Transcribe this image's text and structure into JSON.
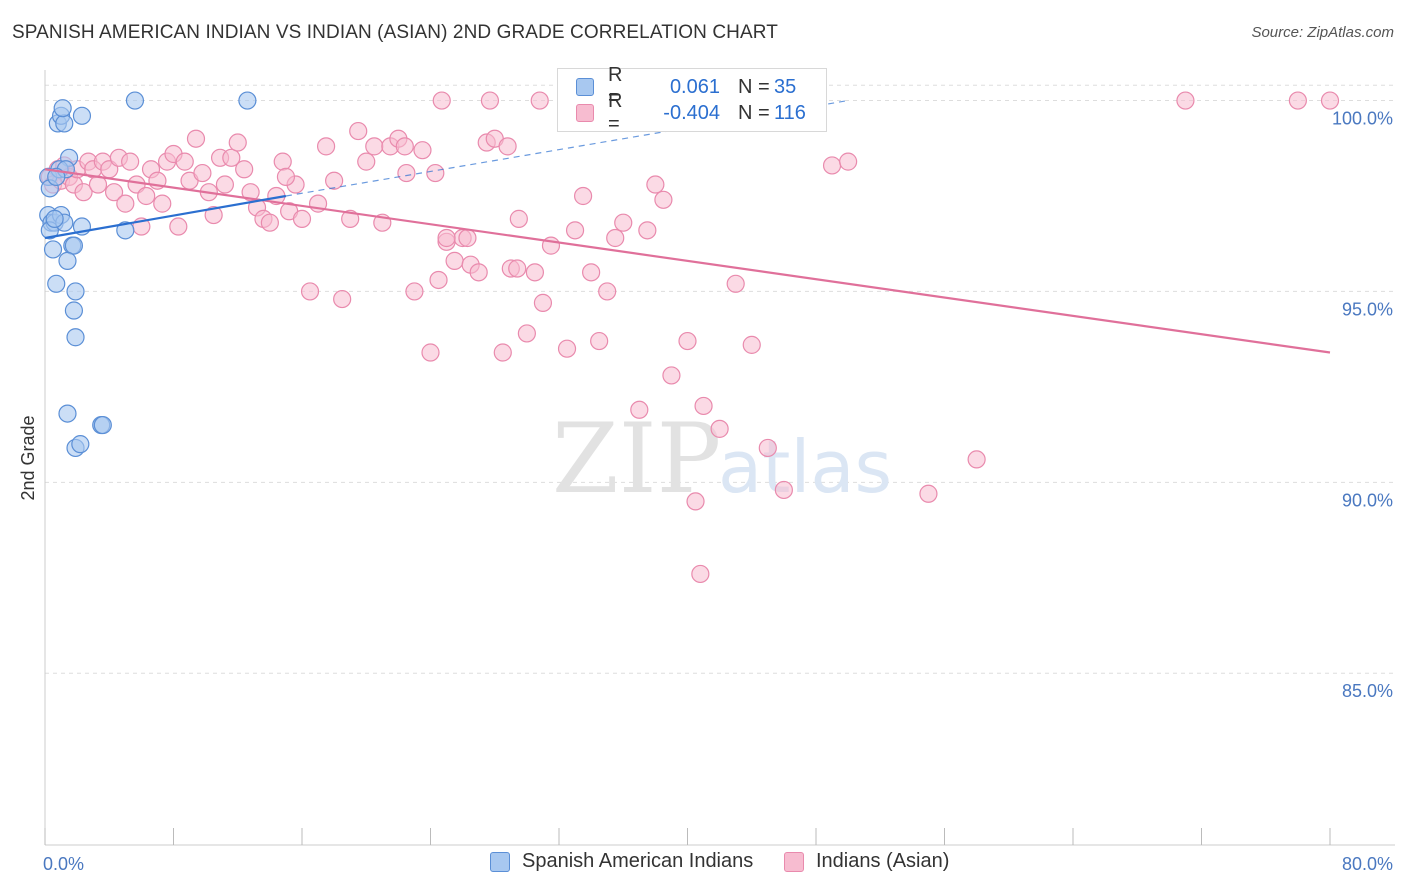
{
  "title": "SPANISH AMERICAN INDIAN VS INDIAN (ASIAN) 2ND GRADE CORRELATION CHART",
  "source": "Source: ZipAtlas.com",
  "watermark": {
    "zip": "ZIP",
    "atlas": "atlas"
  },
  "legend": {
    "series1": {
      "r_label": "R =",
      "r_value": "0.061",
      "n_label": "N =",
      "n_value": "35"
    },
    "series2": {
      "r_label": "R =",
      "r_value": "-0.404",
      "n_label": "N =",
      "n_value": "116"
    }
  },
  "bottom_legend": {
    "series1": "Spanish American Indians",
    "series2": "Indians (Asian)"
  },
  "colors": {
    "series1_fill": "#a8c8f0",
    "series1_stroke": "#5b8fd6",
    "series1_line": "#2b6fd0",
    "series2_fill": "#f7bcd0",
    "series2_stroke": "#e98aad",
    "series2_line": "#e0709a",
    "value_text": "#2b6fd0",
    "axis_text": "#4a78c0",
    "grid": "#dddddd"
  },
  "chart_data": {
    "type": "scatter",
    "title": "SPANISH AMERICAN INDIAN VS INDIAN (ASIAN) 2ND GRADE CORRELATION CHART",
    "xlabel": "",
    "ylabel": "2nd Grade",
    "xlim": [
      0,
      80
    ],
    "ylim": [
      80.5,
      100.8
    ],
    "x_tick_labels": {
      "0": "0.0%",
      "80": "80.0%"
    },
    "y_ticks": [
      100,
      95,
      90,
      85
    ],
    "y_tick_labels": [
      "100.0%",
      "95.0%",
      "90.0%",
      "85.0%"
    ],
    "series": [
      {
        "name": "Spanish American Indians",
        "r": 0.061,
        "n": 35,
        "trend": {
          "x": [
            0,
            15
          ],
          "y": [
            96.4,
            97.5
          ]
        },
        "trend_dashed": {
          "x": [
            15,
            50
          ],
          "y": [
            97.5,
            100.0
          ]
        },
        "points": [
          [
            0.2,
            98.0
          ],
          [
            0.3,
            97.7
          ],
          [
            0.2,
            97.0
          ],
          [
            0.4,
            96.8
          ],
          [
            0.6,
            96.8
          ],
          [
            0.3,
            96.6
          ],
          [
            0.5,
            96.1
          ],
          [
            0.7,
            95.2
          ],
          [
            0.8,
            99.4
          ],
          [
            1.0,
            99.6
          ],
          [
            1.2,
            99.4
          ],
          [
            1.1,
            99.8
          ],
          [
            1.5,
            98.5
          ],
          [
            0.9,
            98.2
          ],
          [
            1.3,
            98.2
          ],
          [
            0.7,
            98.0
          ],
          [
            1.0,
            97.0
          ],
          [
            1.2,
            96.8
          ],
          [
            1.7,
            96.2
          ],
          [
            1.8,
            96.2
          ],
          [
            2.3,
            99.6
          ],
          [
            2.3,
            96.7
          ],
          [
            1.4,
            95.8
          ],
          [
            1.9,
            95.0
          ],
          [
            1.8,
            94.5
          ],
          [
            1.9,
            93.8
          ],
          [
            1.4,
            91.8
          ],
          [
            1.9,
            90.9
          ],
          [
            2.2,
            91.0
          ],
          [
            3.5,
            91.5
          ],
          [
            3.6,
            91.5
          ],
          [
            5.0,
            96.6
          ],
          [
            5.6,
            100.0
          ],
          [
            12.6,
            100.0
          ],
          [
            0.6,
            96.9
          ]
        ]
      },
      {
        "name": "Indians (Asian)",
        "r": -0.404,
        "n": 116,
        "trend": {
          "x": [
            0,
            80
          ],
          "y": [
            98.2,
            93.4
          ]
        },
        "points": [
          [
            0.3,
            98.0
          ],
          [
            0.5,
            97.8
          ],
          [
            0.8,
            98.2
          ],
          [
            1.0,
            97.9
          ],
          [
            1.2,
            98.3
          ],
          [
            1.5,
            98.0
          ],
          [
            1.8,
            97.8
          ],
          [
            2.0,
            98.2
          ],
          [
            2.4,
            97.6
          ],
          [
            2.7,
            98.4
          ],
          [
            3.0,
            98.2
          ],
          [
            3.3,
            97.8
          ],
          [
            3.6,
            98.4
          ],
          [
            4.0,
            98.2
          ],
          [
            4.3,
            97.6
          ],
          [
            4.6,
            98.5
          ],
          [
            5.0,
            97.3
          ],
          [
            5.3,
            98.4
          ],
          [
            5.7,
            97.8
          ],
          [
            6.0,
            96.7
          ],
          [
            6.3,
            97.5
          ],
          [
            6.6,
            98.2
          ],
          [
            7.0,
            97.9
          ],
          [
            7.3,
            97.3
          ],
          [
            7.6,
            98.4
          ],
          [
            8.0,
            98.6
          ],
          [
            8.3,
            96.7
          ],
          [
            8.7,
            98.4
          ],
          [
            9.0,
            97.9
          ],
          [
            9.4,
            99.0
          ],
          [
            9.8,
            98.1
          ],
          [
            10.2,
            97.6
          ],
          [
            10.5,
            97.0
          ],
          [
            10.9,
            98.5
          ],
          [
            11.2,
            97.8
          ],
          [
            11.6,
            98.5
          ],
          [
            12.0,
            98.9
          ],
          [
            12.4,
            98.2
          ],
          [
            12.8,
            97.6
          ],
          [
            13.2,
            97.2
          ],
          [
            13.6,
            96.9
          ],
          [
            14.0,
            96.8
          ],
          [
            14.4,
            97.5
          ],
          [
            14.8,
            98.4
          ],
          [
            15.2,
            97.1
          ],
          [
            15.6,
            97.8
          ],
          [
            16.0,
            96.9
          ],
          [
            16.5,
            95.0
          ],
          [
            17.0,
            97.3
          ],
          [
            17.5,
            98.8
          ],
          [
            18.0,
            97.9
          ],
          [
            18.5,
            94.8
          ],
          [
            19.0,
            96.9
          ],
          [
            19.5,
            99.2
          ],
          [
            20.0,
            98.4
          ],
          [
            20.5,
            98.8
          ],
          [
            21.0,
            96.8
          ],
          [
            21.5,
            98.8
          ],
          [
            22.0,
            99.0
          ],
          [
            22.5,
            98.1
          ],
          [
            23.0,
            95.0
          ],
          [
            23.5,
            98.7
          ],
          [
            24.0,
            93.4
          ],
          [
            24.5,
            95.3
          ],
          [
            25.0,
            96.3
          ],
          [
            25.5,
            95.8
          ],
          [
            26.0,
            96.4
          ],
          [
            26.5,
            95.7
          ],
          [
            27.0,
            95.5
          ],
          [
            27.5,
            98.9
          ],
          [
            28.0,
            99.0
          ],
          [
            28.5,
            93.4
          ],
          [
            29.0,
            95.6
          ],
          [
            29.5,
            96.9
          ],
          [
            30.0,
            93.9
          ],
          [
            30.5,
            95.5
          ],
          [
            31.0,
            94.7
          ],
          [
            31.5,
            96.2
          ],
          [
            32.5,
            93.5
          ],
          [
            33.0,
            96.6
          ],
          [
            33.5,
            97.5
          ],
          [
            34.0,
            95.5
          ],
          [
            34.5,
            93.7
          ],
          [
            35.0,
            95.0
          ],
          [
            35.5,
            96.4
          ],
          [
            36.0,
            96.8
          ],
          [
            37.0,
            91.9
          ],
          [
            37.5,
            96.6
          ],
          [
            38.0,
            97.8
          ],
          [
            38.5,
            97.4
          ],
          [
            39.0,
            92.8
          ],
          [
            40.0,
            93.7
          ],
          [
            40.5,
            89.5
          ],
          [
            40.8,
            87.6
          ],
          [
            41.0,
            92.0
          ],
          [
            42.0,
            91.4
          ],
          [
            43.0,
            95.2
          ],
          [
            44.0,
            93.6
          ],
          [
            45.0,
            90.9
          ],
          [
            46.0,
            89.8
          ],
          [
            49.0,
            98.3
          ],
          [
            55.0,
            89.7
          ],
          [
            58.0,
            90.6
          ],
          [
            25.0,
            96.4
          ],
          [
            26.3,
            96.4
          ],
          [
            29.4,
            95.6
          ],
          [
            71.0,
            100.0
          ],
          [
            78.0,
            100.0
          ],
          [
            80.0,
            100.0
          ],
          [
            50.0,
            98.4
          ],
          [
            27.7,
            100.0
          ],
          [
            24.7,
            100.0
          ],
          [
            28.8,
            98.8
          ],
          [
            35.2,
            100.0
          ],
          [
            30.8,
            100.0
          ],
          [
            24.3,
            98.1
          ],
          [
            22.4,
            98.8
          ],
          [
            15.0,
            98.0
          ]
        ]
      }
    ]
  }
}
